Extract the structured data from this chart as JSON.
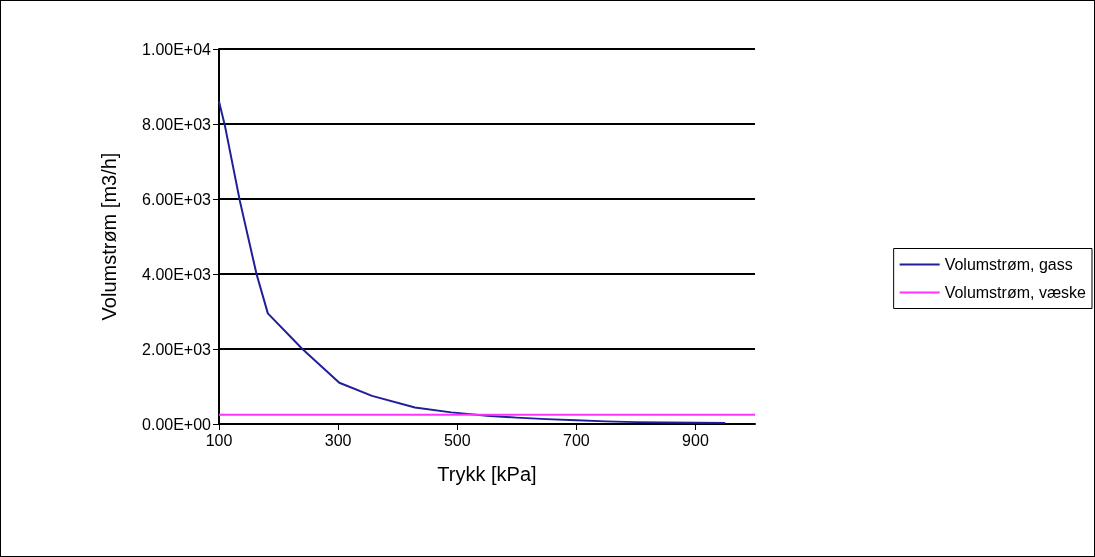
{
  "chart_data": {
    "type": "line",
    "xlabel": "Trykk [kPa]",
    "ylabel": "Volumstrøm [m3/h]",
    "xlim": [
      100,
      1000
    ],
    "xticks": [
      100,
      300,
      500,
      700,
      900
    ],
    "ylim": [
      0,
      10000
    ],
    "yticks": [
      {
        "value": 0,
        "label": "0.00E+00"
      },
      {
        "value": 2000,
        "label": "2.00E+03"
      },
      {
        "value": 4000,
        "label": "4.00E+03"
      },
      {
        "value": 6000,
        "label": "6.00E+03"
      },
      {
        "value": 8000,
        "label": "8.00E+03"
      },
      {
        "value": 10000,
        "label": "1.00E+04"
      }
    ],
    "grid": "y",
    "legend": "right",
    "marker": "none",
    "series": [
      {
        "name": "Volumstrøm, gass",
        "color": "#1f1f99",
        "x": [
          100,
          110,
          135,
          163,
          182,
          240,
          302,
          357,
          429,
          490,
          550,
          600,
          650,
          700,
          750,
          800,
          850,
          900,
          950
        ],
        "values": [
          8600,
          7950,
          5950,
          4000,
          2950,
          2000,
          1100,
          750,
          440,
          310,
          220,
          170,
          130,
          100,
          70,
          50,
          40,
          35,
          30
        ]
      },
      {
        "name": "Volumstrøm, væske",
        "color": "#ff33ff",
        "x": [
          100,
          1000
        ],
        "values": [
          250,
          250
        ]
      }
    ]
  }
}
